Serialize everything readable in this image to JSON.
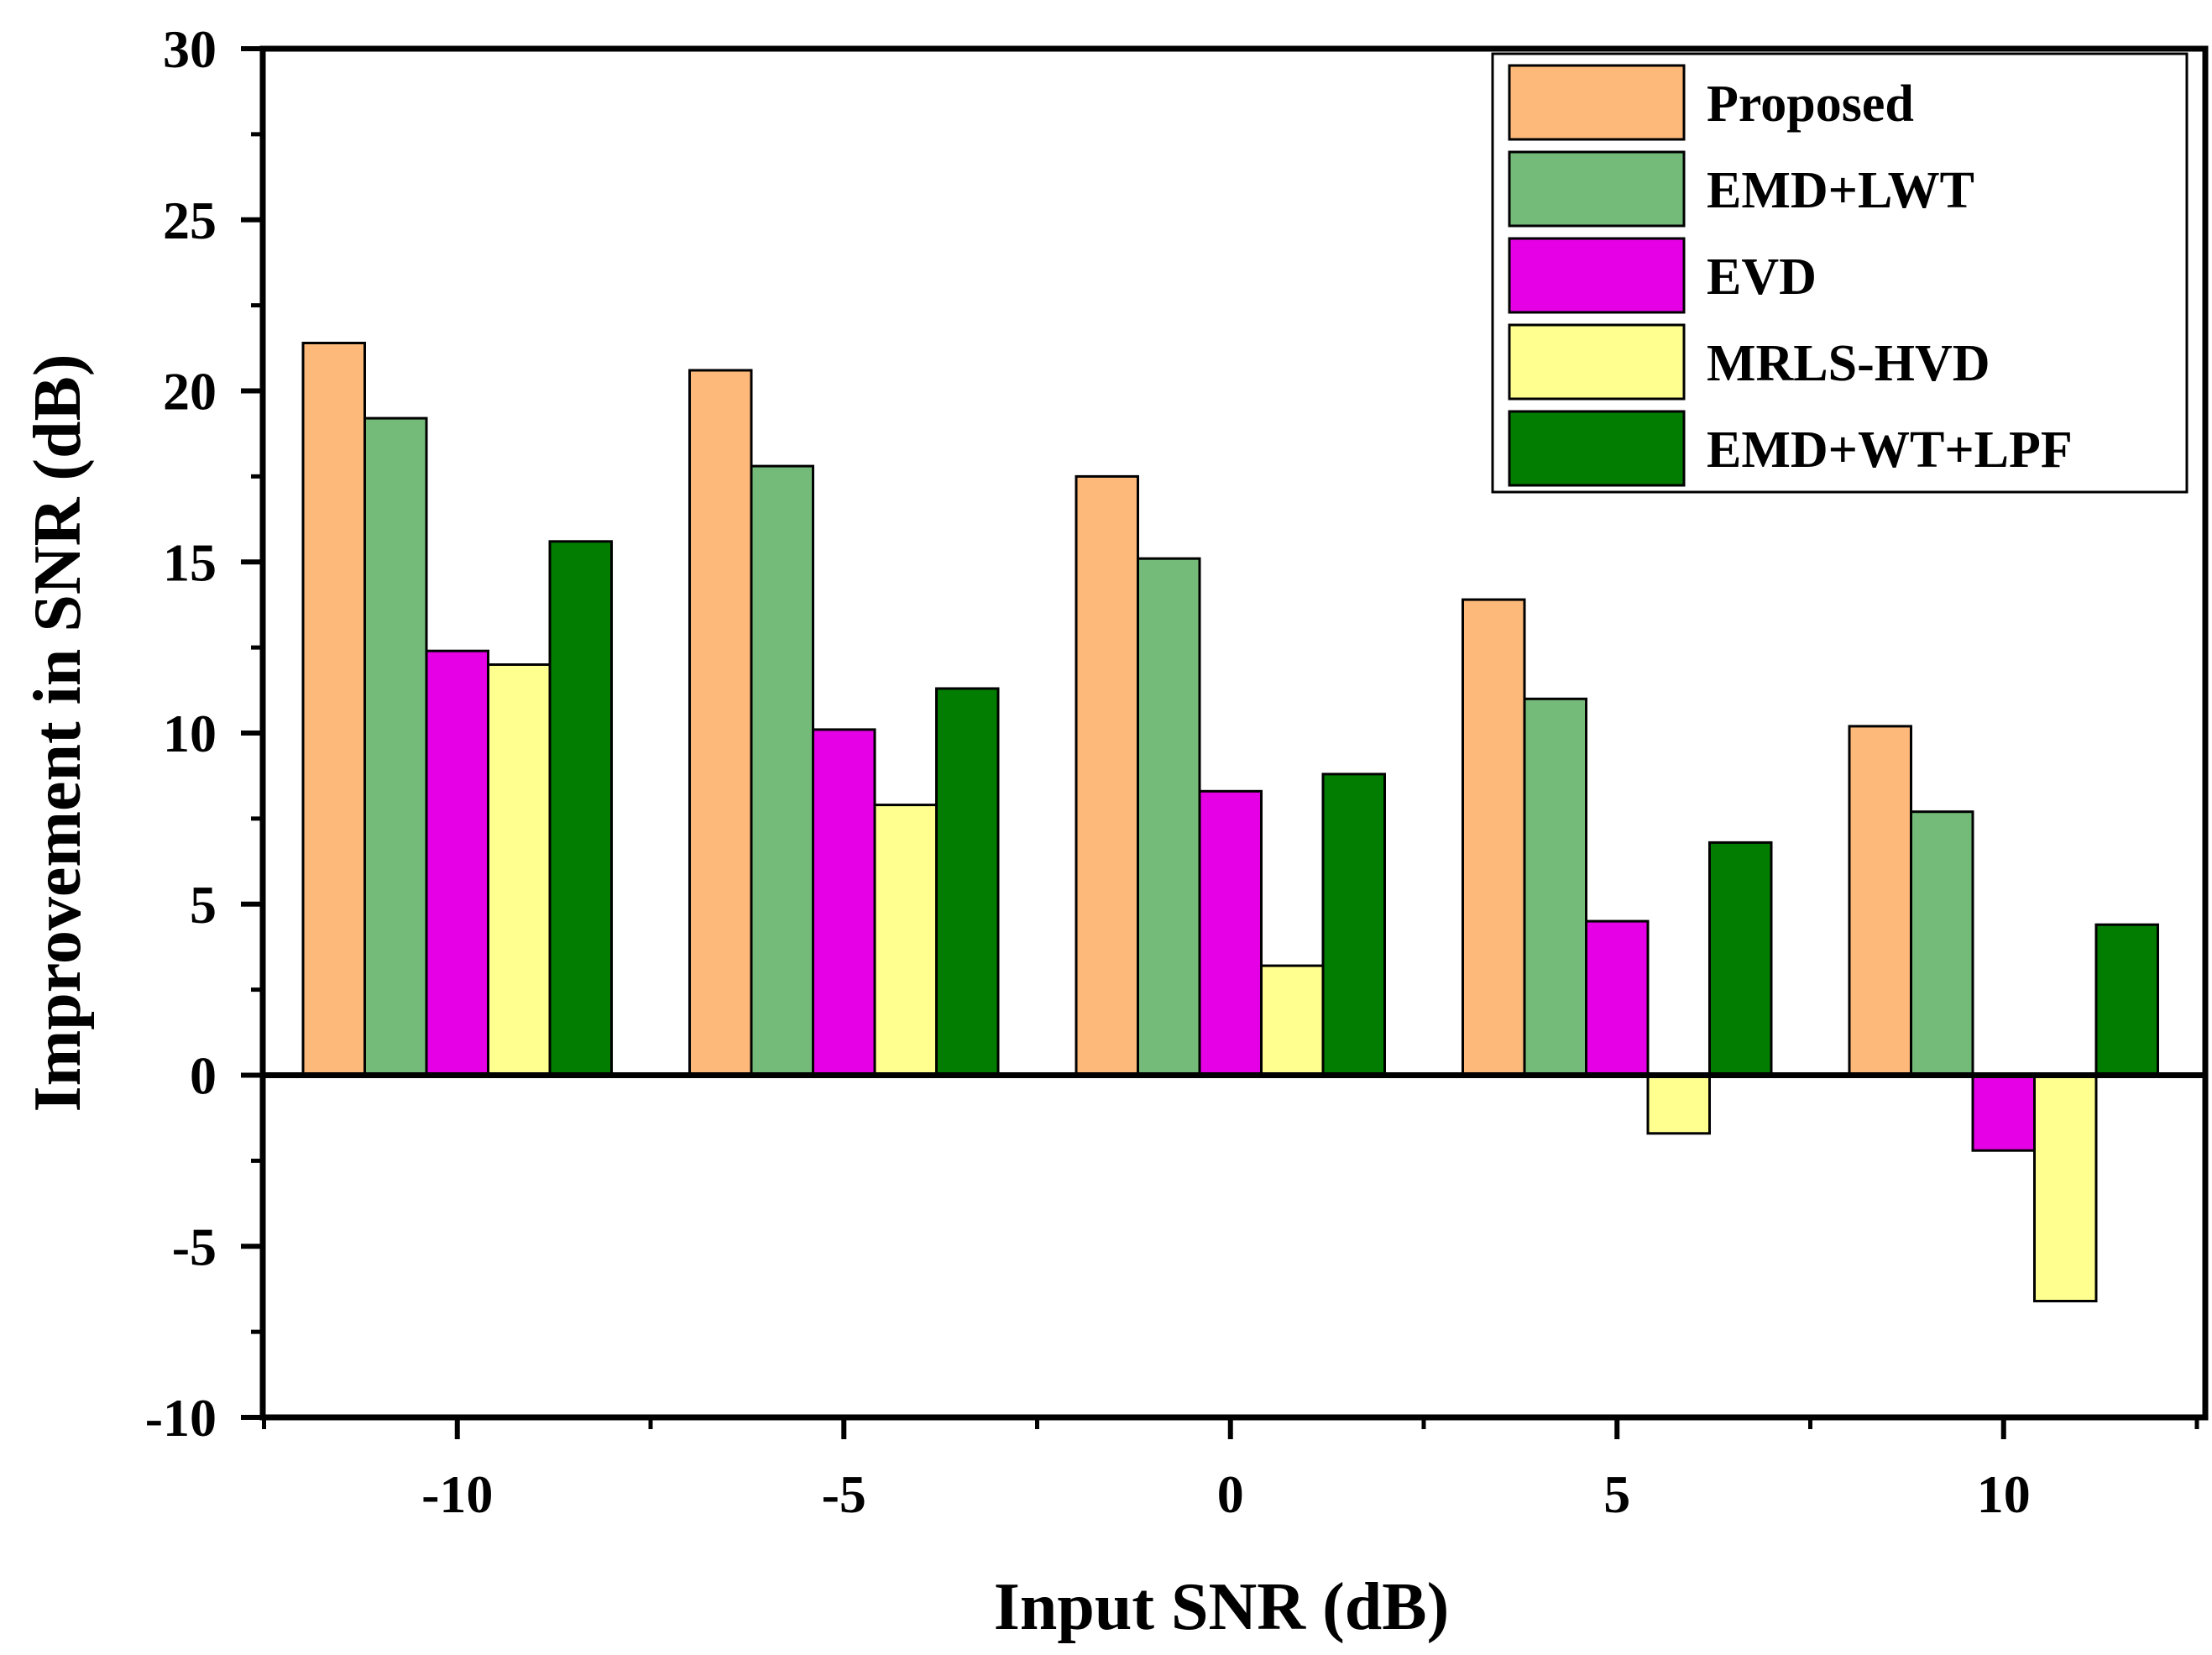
{
  "chart_data": {
    "type": "bar",
    "title": "",
    "xlabel": "Input SNR (dB)",
    "ylabel": "Improvement in SNR (dB)",
    "categories": [
      "-10",
      "-5",
      "0",
      "5",
      "10"
    ],
    "ylim": [
      -10,
      30
    ],
    "yticks": [
      30,
      25,
      20,
      15,
      10,
      5,
      0,
      -5,
      -10
    ],
    "ytick_labels": [
      "30",
      "25",
      "20",
      "15",
      "10",
      "5",
      "0",
      "-5",
      "-10"
    ],
    "legend_position": "top-right",
    "grid": false,
    "series": [
      {
        "name": "Proposed",
        "color": "#FDB97A",
        "values": [
          21.4,
          20.6,
          17.5,
          13.9,
          10.2
        ]
      },
      {
        "name": "EMD+LWT",
        "color": "#74BB7A",
        "values": [
          19.2,
          17.8,
          15.1,
          11.0,
          7.7
        ]
      },
      {
        "name": "EVD",
        "color": "#E600E6",
        "values": [
          12.4,
          10.1,
          8.3,
          4.5,
          -2.2
        ]
      },
      {
        "name": "MRLS-HVD",
        "color": "#FFFF8F",
        "values": [
          12.0,
          7.9,
          3.2,
          -1.7,
          -6.6
        ]
      },
      {
        "name": "EMD+WT+LPF",
        "color": "#027D02",
        "values": [
          15.6,
          11.3,
          8.8,
          6.8,
          4.4
        ]
      }
    ]
  }
}
